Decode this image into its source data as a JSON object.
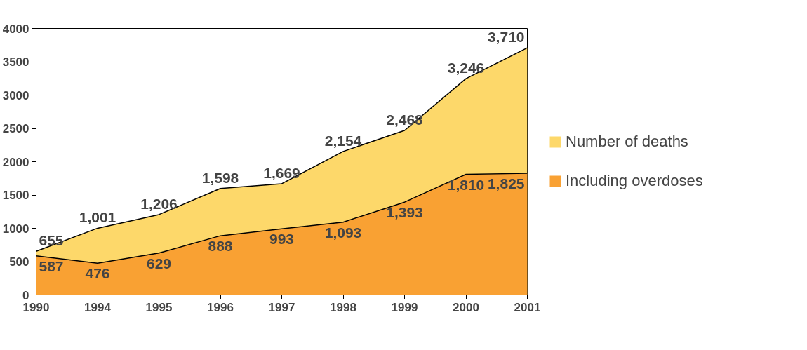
{
  "chart_data": {
    "type": "area",
    "categories": [
      "1990",
      "1994",
      "1995",
      "1996",
      "1997",
      "1998",
      "1999",
      "2000",
      "2001"
    ],
    "series": [
      {
        "name": "Number of deaths",
        "color": "#fdd86a",
        "values": [
          655,
          1001,
          1206,
          1598,
          1669,
          2154,
          2468,
          3246,
          3710
        ],
        "value_labels": [
          "655",
          "1,001",
          "1,206",
          "1,598",
          "1,669",
          "2,154",
          "2,468",
          "3,246",
          "3,710"
        ]
      },
      {
        "name": "Including overdoses",
        "color": "#f9a133",
        "values": [
          587,
          476,
          629,
          888,
          993,
          1093,
          1393,
          1810,
          1825
        ],
        "value_labels": [
          "587",
          "476",
          "629",
          "888",
          "993",
          "1,093",
          "1,393",
          "1,810",
          "1,825"
        ]
      }
    ],
    "ylim": [
      0,
      4000
    ],
    "yticks": [
      0,
      500,
      1000,
      1500,
      2000,
      2500,
      3000,
      3500,
      4000
    ],
    "grid": false,
    "legend": "right",
    "data_labels": true
  }
}
